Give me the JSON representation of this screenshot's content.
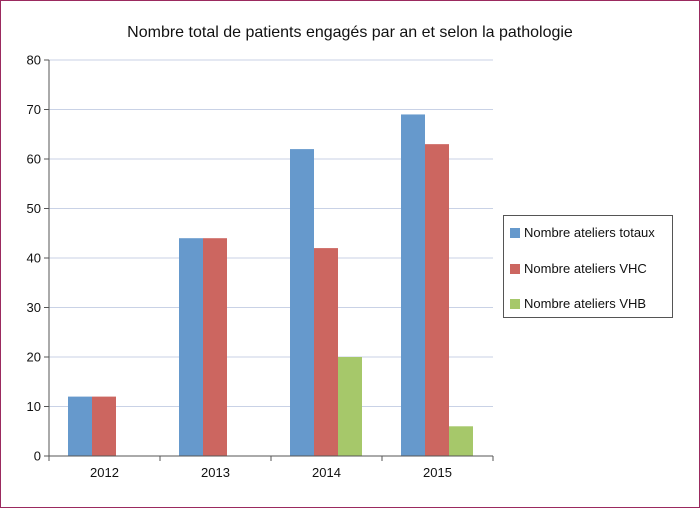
{
  "chart_data": {
    "type": "bar",
    "title": "Nombre total de patients engagés par an et selon la pathologie",
    "categories": [
      "2012",
      "2013",
      "2014",
      "2015"
    ],
    "series": [
      {
        "name": "Nombre ateliers totaux",
        "values": [
          12,
          44,
          62,
          69
        ],
        "color": "#6699cc"
      },
      {
        "name": "Nombre ateliers VHC",
        "values": [
          12,
          44,
          42,
          63
        ],
        "color": "#cc6660"
      },
      {
        "name": "Nombre ateliers VHB",
        "values": [
          0,
          0,
          20,
          6
        ],
        "color": "#a6c86a"
      }
    ],
    "ylim": [
      0,
      80
    ],
    "yticks": [
      "0",
      "10",
      "20",
      "30",
      "40",
      "50",
      "60",
      "70",
      "80"
    ],
    "xlabel": "",
    "ylabel": "",
    "grid": true,
    "legend": "right"
  }
}
